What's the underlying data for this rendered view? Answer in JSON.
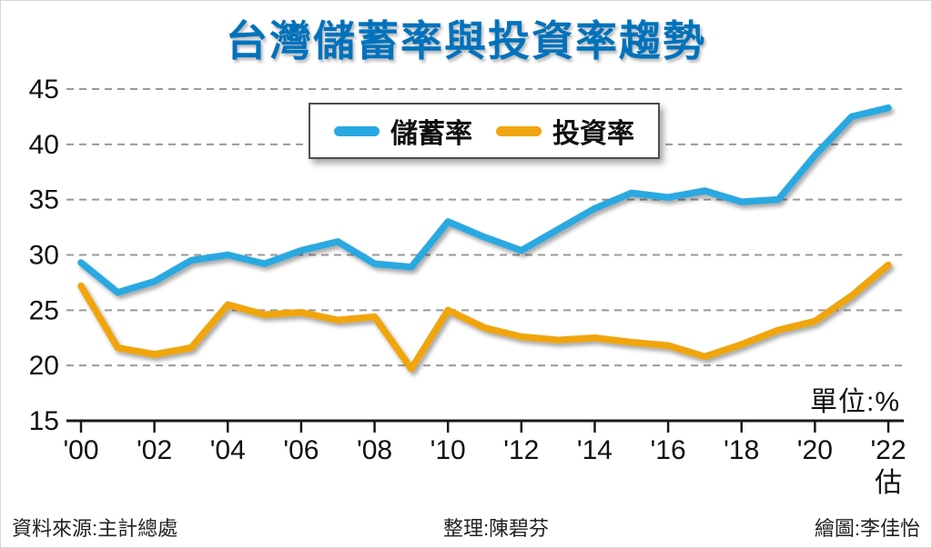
{
  "page": {
    "title": "台灣儲蓄率與投資率趨勢",
    "footer": {
      "source": "資料來源:主計總處",
      "editor": "整理:陳碧芬",
      "illustrator": "繪圖:李佳怡"
    }
  },
  "colors": {
    "title": "#0072bc",
    "axis_text": "#111111",
    "axis_line": "#1a1a1a",
    "gridline": "#999999",
    "background": "#ffffff"
  },
  "chart_data": {
    "type": "line",
    "title": "台灣儲蓄率與投資率趨勢",
    "unit_label": "單位:%",
    "ylim": [
      15,
      45
    ],
    "yticks": [
      15,
      20,
      25,
      30,
      35,
      40,
      45
    ],
    "grid": "dashed horizontal gridlines",
    "legend_position": "top-center inside plot",
    "x_years": [
      2000,
      2001,
      2002,
      2003,
      2004,
      2005,
      2006,
      2007,
      2008,
      2009,
      2010,
      2011,
      2012,
      2013,
      2014,
      2015,
      2016,
      2017,
      2018,
      2019,
      2020,
      2021,
      2022
    ],
    "xtick_years": [
      2000,
      2002,
      2004,
      2006,
      2008,
      2010,
      2012,
      2014,
      2016,
      2018,
      2020,
      2022
    ],
    "xtick_labels": [
      "'00",
      "'02",
      "'04",
      "'06",
      "'08",
      "'10",
      "'12",
      "'14",
      "'16",
      "'18",
      "'20",
      "'22"
    ],
    "last_xtick_note": "估",
    "series": [
      {
        "key": "savings-rate",
        "name": "儲蓄率",
        "color": "#29a9e1",
        "values": [
          29.3,
          26.6,
          27.6,
          29.5,
          30.0,
          29.2,
          30.4,
          31.2,
          29.2,
          28.9,
          33.0,
          31.6,
          30.4,
          32.3,
          34.2,
          35.6,
          35.2,
          35.8,
          34.8,
          35.0,
          39.0,
          42.5,
          43.3
        ]
      },
      {
        "key": "investment-rate",
        "name": "投資率",
        "color": "#f0a50e",
        "values": [
          27.2,
          21.6,
          21.0,
          21.6,
          25.5,
          24.6,
          24.8,
          24.1,
          24.4,
          19.7,
          25.0,
          23.4,
          22.6,
          22.3,
          22.5,
          22.1,
          21.8,
          20.8,
          21.9,
          23.2,
          24.0,
          26.3,
          29.1
        ]
      }
    ]
  }
}
